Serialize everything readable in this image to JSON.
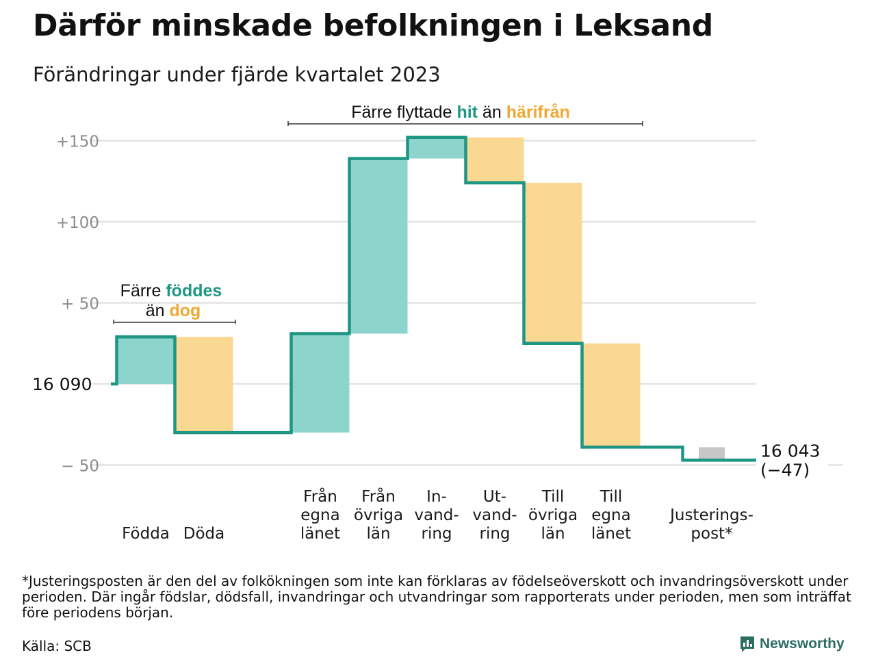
{
  "title": "Därför minskade befolkningen i Leksand",
  "subtitle": "Förändringar under fjärde kvartalet 2023",
  "colors": {
    "in": "#8dd5cc",
    "out": "#fbd892",
    "adjust": "#c7c7c7",
    "line": "#1e9684",
    "in_text": "#1e9684",
    "out_text": "#f0a830",
    "grid": "#e3e3e3",
    "tick": "#8a8a8a"
  },
  "annotations": {
    "birth": {
      "l1": "Färre ",
      "l1_hl": "föddes",
      "l2": "än ",
      "l2_hl": "dog"
    },
    "migration": {
      "pre": "Färre flyttade ",
      "hl1": "hit",
      "mid": " än ",
      "hl2": "härifrån"
    }
  },
  "chart_data": {
    "type": "waterfall",
    "start": {
      "value": 16090,
      "label": "16 090"
    },
    "end": {
      "value": 16043,
      "label": "16 043",
      "change_label": "(−47)"
    },
    "yaxis": {
      "ticks": [
        150,
        100,
        50,
        0,
        -50
      ],
      "tick_labels": [
        "+150",
        "+100",
        "+  50",
        "",
        "−  50"
      ],
      "ylim": [
        -50,
        150
      ]
    },
    "steps": [
      {
        "label": [
          "Födda"
        ],
        "value": 29,
        "kind": "in"
      },
      {
        "label": [
          "Döda"
        ],
        "value": -59,
        "kind": "out"
      },
      {
        "label": [
          "Från",
          "egna",
          "länet"
        ],
        "value": 61,
        "kind": "in"
      },
      {
        "label": [
          "Från",
          "övriga",
          "län"
        ],
        "value": 108,
        "kind": "in"
      },
      {
        "label": [
          "In-",
          "vand-",
          "ring"
        ],
        "value": 13,
        "kind": "in"
      },
      {
        "label": [
          "Ut-",
          "vand-",
          "ring"
        ],
        "value": -28,
        "kind": "out"
      },
      {
        "label": [
          "Till",
          "övriga",
          "län"
        ],
        "value": -99,
        "kind": "out"
      },
      {
        "label": [
          "Till",
          "egna",
          "länet"
        ],
        "value": -64,
        "kind": "out"
      },
      {
        "label": [
          "Justerings-",
          "post*"
        ],
        "value": -8,
        "kind": "adjust"
      }
    ]
  },
  "footnote": "*Justeringsposten är den del av folkökningen som inte kan förklaras av födelseöverskott och invandringsöverskott under perioden. Där ingår födslar, dödsfall, invandringar och utvandringar som rapporterats under perioden, men som inträffat före periodens början.",
  "source": "Källa: SCB",
  "brand": {
    "name": "Newsworthy",
    "icon": "newsworthy-logo-icon"
  }
}
